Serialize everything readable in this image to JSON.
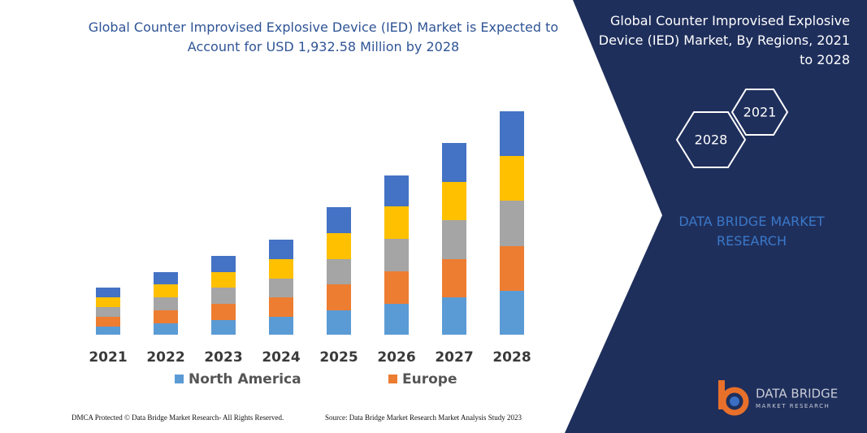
{
  "chart_data": {
    "type": "stacked_bar",
    "title": "Global Counter Improvised Explosive Device (IED) Market is Expected to Account for USD 1,932.58 Million by 2028",
    "categories": [
      "2021",
      "2022",
      "2023",
      "2024",
      "2025",
      "2026",
      "2027",
      "2028"
    ],
    "series": [
      {
        "name": "North America",
        "color": "#5b9bd5",
        "values": [
          10,
          14,
          18,
          22,
          30,
          38,
          46,
          54
        ]
      },
      {
        "name": "Europe",
        "color": "#ed7d31",
        "values": [
          12,
          16,
          20,
          24,
          32,
          40,
          47,
          55
        ]
      },
      {
        "color": "#a5a5a5",
        "values": [
          12,
          16,
          20,
          23,
          31,
          40,
          48,
          56
        ]
      },
      {
        "color": "#ffc000",
        "values": [
          12,
          16,
          19,
          24,
          32,
          40,
          47,
          55
        ]
      },
      {
        "color": "#4472c4",
        "values": [
          12,
          15,
          20,
          24,
          32,
          38,
          48,
          55
        ]
      }
    ]
  },
  "panel": {
    "title": "Global Counter Improvised Explosive Device (IED) Market, By Regions, 2021 to 2028",
    "hexagons": [
      "2028",
      "2021"
    ],
    "brand": "DATA BRIDGE MARKET RESEARCH"
  },
  "footer": {
    "left": "DMCA Protected © Data Bridge Market Research-  All Rights Reserved.",
    "right": "Source: Data Bridge Market Research  Market Analysis Study 2023"
  },
  "logo": {
    "name": "DATA BRIDGE",
    "tagline": "MARKET RESEARCH"
  }
}
